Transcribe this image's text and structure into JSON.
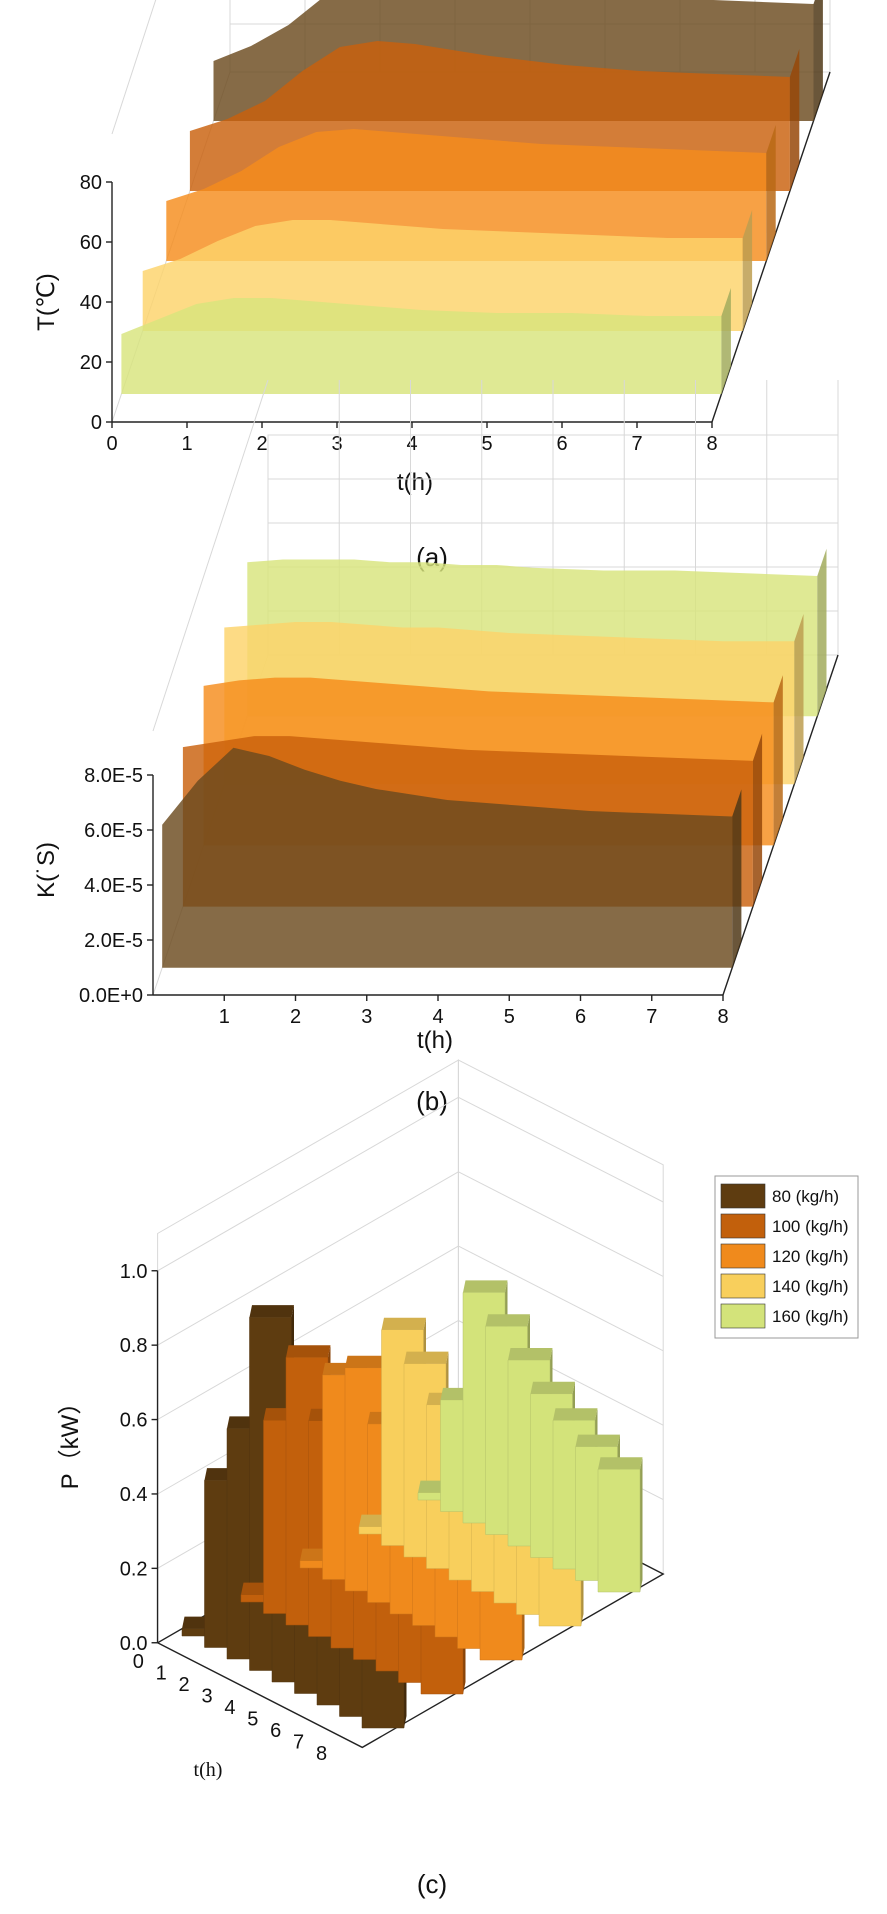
{
  "chart_data": [
    {
      "type": "area",
      "subtitle": "(a)",
      "xlabel": "t(h)",
      "ylabel": "T(℃)",
      "x_ticks": [
        "0",
        "1",
        "2",
        "3",
        "4",
        "5",
        "6",
        "7",
        "8"
      ],
      "y_ticks": [
        "0",
        "20",
        "40",
        "60",
        "80"
      ],
      "xlim": [
        0,
        8
      ],
      "ylim": [
        0,
        80
      ],
      "x": [
        0,
        0.5,
        1,
        1.5,
        2,
        2.5,
        3,
        3.5,
        4,
        5,
        6,
        7,
        8
      ],
      "series": [
        {
          "name": "80 (kg/h)",
          "color": "#6b4a1f",
          "values": [
            20,
            25,
            32,
            42,
            58,
            72,
            62,
            52,
            47,
            43,
            41,
            40,
            39
          ]
        },
        {
          "name": "100 (kg/h)",
          "color": "#c9600c",
          "values": [
            20,
            24,
            30,
            40,
            48,
            50,
            49,
            47,
            45,
            42,
            40,
            39,
            38
          ]
        },
        {
          "name": "120 (kg/h)",
          "color": "#f58c1c",
          "values": [
            20,
            24,
            30,
            38,
            43,
            44,
            43,
            42,
            41,
            39,
            38,
            37,
            36
          ]
        },
        {
          "name": "140 (kg/h)",
          "color": "#fcd36a",
          "values": [
            20,
            24,
            30,
            35,
            37,
            37,
            36,
            35,
            34,
            33,
            32,
            31,
            31
          ]
        },
        {
          "name": "160 (kg/h)",
          "color": "#d8e47c",
          "values": [
            20,
            25,
            30,
            32,
            32,
            31,
            30,
            29,
            28,
            27,
            27,
            26,
            26
          ]
        }
      ]
    },
    {
      "type": "area",
      "subtitle": "(b)",
      "xlabel": "t(h)",
      "ylabel": "K(˙S)",
      "x_ticks": [
        "1",
        "2",
        "3",
        "4",
        "5",
        "6",
        "7",
        "8"
      ],
      "y_ticks": [
        "0.0E+0",
        "2.0E-5",
        "4.0E-5",
        "6.0E-5",
        "8.0E-5"
      ],
      "xlim": [
        0,
        8
      ],
      "ylim": [
        0,
        8e-05
      ],
      "x": [
        0,
        0.5,
        1,
        1.5,
        2,
        2.5,
        3,
        3.5,
        4,
        5,
        6,
        7,
        8
      ],
      "series": [
        {
          "name": "80 (kg/h)",
          "color": "#6b4a1f",
          "values": [
            5.2e-05,
            6.8e-05,
            8e-05,
            7.7e-05,
            7.2e-05,
            6.8e-05,
            6.5e-05,
            6.3e-05,
            6.1e-05,
            5.9e-05,
            5.7e-05,
            5.6e-05,
            5.5e-05
          ]
        },
        {
          "name": "100 (kg/h)",
          "color": "#c9600c",
          "values": [
            5.8e-05,
            6e-05,
            6.2e-05,
            6.2e-05,
            6.1e-05,
            6e-05,
            5.9e-05,
            5.8e-05,
            5.7e-05,
            5.6e-05,
            5.5e-05,
            5.4e-05,
            5.3e-05
          ]
        },
        {
          "name": "120 (kg/h)",
          "color": "#f58c1c",
          "values": [
            5.8e-05,
            6e-05,
            6.1e-05,
            6.1e-05,
            6e-05,
            5.9e-05,
            5.8e-05,
            5.7e-05,
            5.6e-05,
            5.5e-05,
            5.4e-05,
            5.3e-05,
            5.2e-05
          ]
        },
        {
          "name": "140 (kg/h)",
          "color": "#fcd36a",
          "values": [
            5.7e-05,
            5.8e-05,
            5.9e-05,
            5.9e-05,
            5.8e-05,
            5.7e-05,
            5.7e-05,
            5.6e-05,
            5.5e-05,
            5.4e-05,
            5.3e-05,
            5.2e-05,
            5.2e-05
          ]
        },
        {
          "name": "160 (kg/h)",
          "color": "#d8e47c",
          "values": [
            5.6e-05,
            5.7e-05,
            5.7e-05,
            5.7e-05,
            5.6e-05,
            5.6e-05,
            5.5e-05,
            5.5e-05,
            5.4e-05,
            5.3e-05,
            5.3e-05,
            5.2e-05,
            5.1e-05
          ]
        }
      ]
    },
    {
      "type": "bar",
      "subtitle": "(c)",
      "xlabel": "t(h)",
      "ylabel": "P（kW）",
      "categories": [
        "0",
        "1",
        "2",
        "3",
        "4",
        "5",
        "6",
        "7",
        "8"
      ],
      "y_ticks": [
        "0.0",
        "0.2",
        "0.4",
        "0.6",
        "0.8",
        "1.0"
      ],
      "ylim": [
        0,
        1.0
      ],
      "legend_position": "top-right",
      "series": [
        {
          "name": "80 (kg/h)",
          "color": "#5e3c10",
          "values": [
            0.02,
            0.45,
            0.62,
            0.95,
            0.6,
            0.42,
            0.33,
            0.27,
            0.22
          ]
        },
        {
          "name": "100 (kg/h)",
          "color": "#c2600c",
          "values": [
            0.02,
            0.52,
            0.72,
            0.58,
            0.45,
            0.37,
            0.32,
            0.28,
            0.25
          ]
        },
        {
          "name": "120 (kg/h)",
          "color": "#f08a1c",
          "values": [
            0.02,
            0.55,
            0.6,
            0.48,
            0.4,
            0.35,
            0.31,
            0.28,
            0.26
          ]
        },
        {
          "name": "140 (kg/h)",
          "color": "#f8cf5c",
          "values": [
            0.02,
            0.58,
            0.52,
            0.44,
            0.38,
            0.34,
            0.31,
            0.29,
            0.27
          ]
        },
        {
          "name": "160 (kg/h)",
          "color": "#d3e37a",
          "values": [
            0.02,
            0.3,
            0.62,
            0.56,
            0.5,
            0.44,
            0.4,
            0.36,
            0.33
          ]
        }
      ]
    }
  ]
}
